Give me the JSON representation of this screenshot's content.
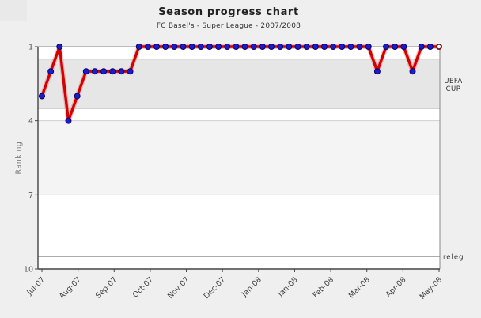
{
  "page": {
    "title": "Season progress chart",
    "subtitle": "FC Basel's - Super League - 2007/2008"
  },
  "chart_data": {
    "type": "line",
    "title": "Season progress chart",
    "subtitle": "FC Basel's - Super League - 2007/2008",
    "ylabel": "Ranking",
    "ylim": [
      1,
      10
    ],
    "y_inverted": true,
    "y_ticks": [
      1,
      4,
      7,
      10
    ],
    "grid": "horizontal-only",
    "legend": "none",
    "x_tick_labels": [
      "Jul-07",
      "Aug-07",
      "Sep-07",
      "Oct-07",
      "Nov-07",
      "Dec-07",
      "Jan-08",
      "Jan-08",
      "Feb-08",
      "Mar-08",
      "Apr-08",
      "May-08"
    ],
    "series": [
      {
        "name": "Ranking",
        "values": [
          3,
          2,
          1,
          4,
          3,
          2,
          2,
          2,
          2,
          2,
          2,
          1,
          1,
          1,
          1,
          1,
          1,
          1,
          1,
          1,
          1,
          1,
          1,
          1,
          1,
          1,
          1,
          1,
          1,
          1,
          1,
          1,
          1,
          1,
          1,
          1,
          1,
          1,
          2,
          1,
          1,
          1,
          2,
          1,
          1,
          1
        ],
        "final_marker": "open-circle"
      }
    ],
    "zones": [
      {
        "name": "uefa-cup-zone",
        "label": "UEFA CUP",
        "from": 1.5,
        "to": 3.5,
        "fill": "#e6e6e6",
        "border": "#a0a0a0"
      },
      {
        "name": "relegation-zone",
        "label": "releg",
        "from": 9.5,
        "to": 10,
        "fill": "none",
        "border": "#a0a0a0"
      }
    ],
    "bands": [
      {
        "from": 4,
        "to": 7,
        "fill": "#f4f4f4"
      }
    ],
    "colors": {
      "line": "#d40000",
      "line_halo": "#e88080",
      "marker_fill": "#1c1cc8",
      "marker_edge": "#000070",
      "final_marker_ring": "#701525",
      "plot_background": "#ffffff",
      "page_background": "#efefef",
      "gridline": "#cfcfcf",
      "axis": "#444444",
      "tick_text": "#555555",
      "annotation_text": "#333333"
    }
  }
}
